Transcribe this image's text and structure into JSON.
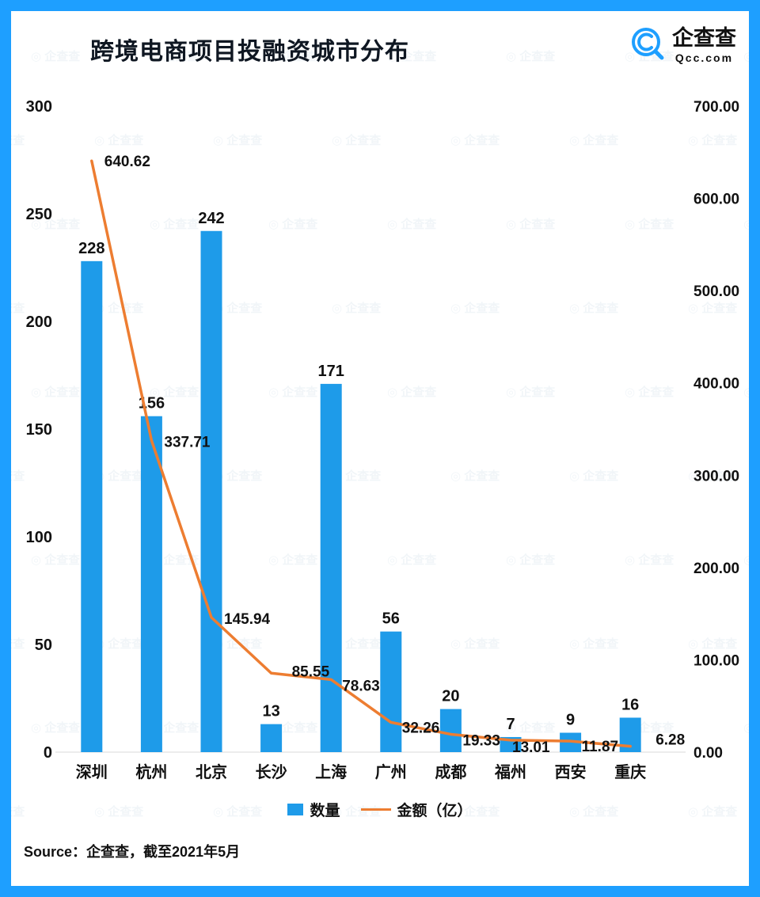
{
  "page": {
    "title": "跨境电商项目投融资城市分布",
    "source_label": "Source：企查查，截至2021年5月",
    "watermark_text": "企查查"
  },
  "logo": {
    "name": "企查查",
    "domain": "Qcc.com"
  },
  "colors": {
    "frame": "#1E9FFF",
    "bar": "#1E9BE9",
    "line": "#ED7D31",
    "text": "#111111"
  },
  "chart_data": {
    "type": "bar+line",
    "title": "跨境电商项目投融资城市分布",
    "categories": [
      "深圳",
      "杭州",
      "北京",
      "长沙",
      "上海",
      "广州",
      "成都",
      "福州",
      "西安",
      "重庆"
    ],
    "series": [
      {
        "name": "数量",
        "type": "bar",
        "axis": "left",
        "values": [
          228,
          156,
          242,
          13,
          171,
          56,
          20,
          7,
          9,
          16
        ]
      },
      {
        "name": "金额（亿）",
        "type": "line",
        "axis": "right",
        "values": [
          640.62,
          337.71,
          145.94,
          85.55,
          78.63,
          32.26,
          19.33,
          13.01,
          11.87,
          6.28
        ]
      }
    ],
    "left_axis": {
      "min": 0,
      "max": 300,
      "step": 50,
      "ticks": [
        "0",
        "50",
        "100",
        "150",
        "200",
        "250",
        "300"
      ]
    },
    "right_axis": {
      "min": 0,
      "max": 700,
      "step": 100,
      "ticks": [
        "0.00",
        "100.00",
        "200.00",
        "300.00",
        "400.00",
        "500.00",
        "600.00",
        "700.00"
      ]
    },
    "xlabel": "",
    "ylabel": "",
    "grid": false,
    "legend_position": "bottom"
  }
}
